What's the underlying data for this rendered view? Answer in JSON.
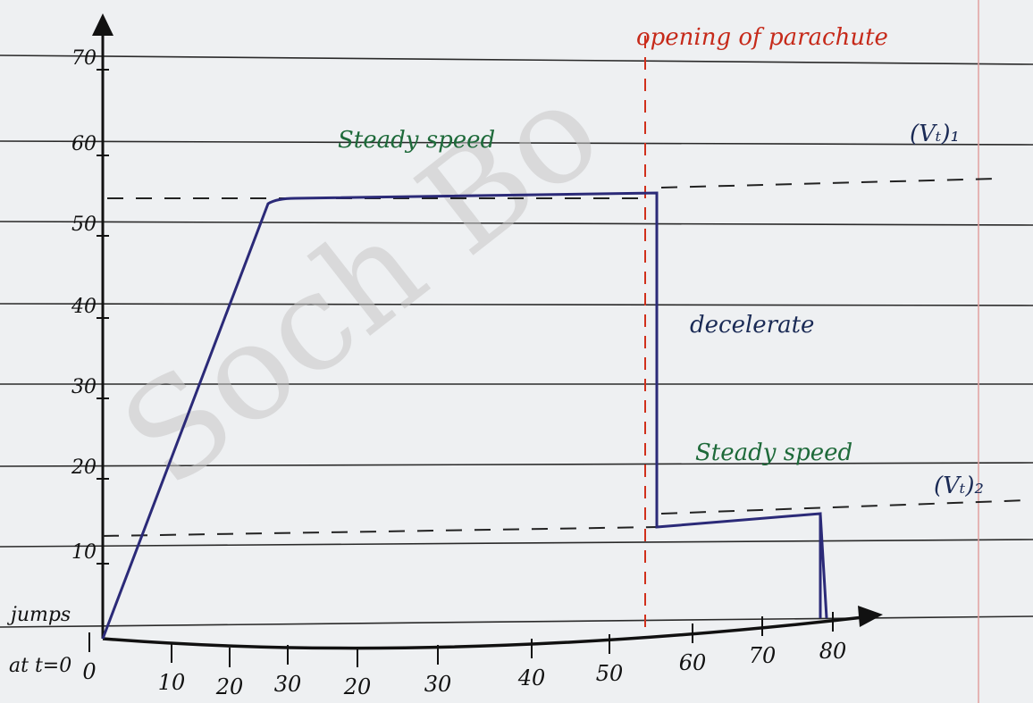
{
  "watermark": "Soch Bo",
  "y_axis": {
    "ticks": [
      "70",
      "60",
      "50",
      "40",
      "30",
      "20",
      "10"
    ]
  },
  "x_axis": {
    "ticks": [
      "0",
      "10",
      "20",
      "30",
      "20",
      "30",
      "40",
      "50",
      "60",
      "70",
      "80"
    ]
  },
  "annotations": {
    "parachute": "opening of parachute",
    "steady_1": "Steady speed",
    "vt_1": "(Vₜ)₁",
    "decelerate": "decelerate",
    "steady_2": "Steady speed",
    "vt_2": "(Vₜ)₂",
    "jumps": "jumps",
    "start": "at t=0"
  }
}
